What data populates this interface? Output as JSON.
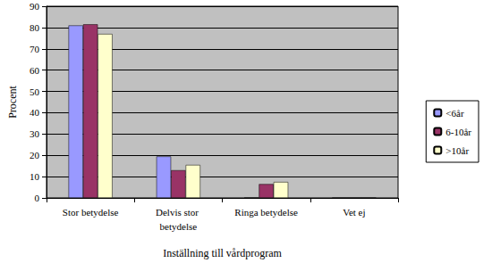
{
  "chart_data": {
    "type": "bar",
    "x_label": "Inställning till vårdprogram",
    "y_label": "Procent",
    "categories": [
      "Stor betydelse",
      "Delvis stor betydelse",
      "Ringa betydelse",
      "Vet ej"
    ],
    "series": [
      {
        "name": "<6år",
        "color": "#9999ff",
        "values": [
          81,
          19.5,
          0,
          0
        ]
      },
      {
        "name": "6-10år",
        "color": "#993366",
        "values": [
          81.5,
          13,
          6.5,
          0
        ]
      },
      {
        "name": ">10år",
        "color": "#ffffcc",
        "values": [
          77,
          15.5,
          7.5,
          0
        ]
      }
    ],
    "ylim": [
      0,
      90
    ],
    "yticks": [
      0,
      10,
      20,
      30,
      40,
      50,
      60,
      70,
      80,
      90
    ],
    "grid": true,
    "legend": "right"
  }
}
